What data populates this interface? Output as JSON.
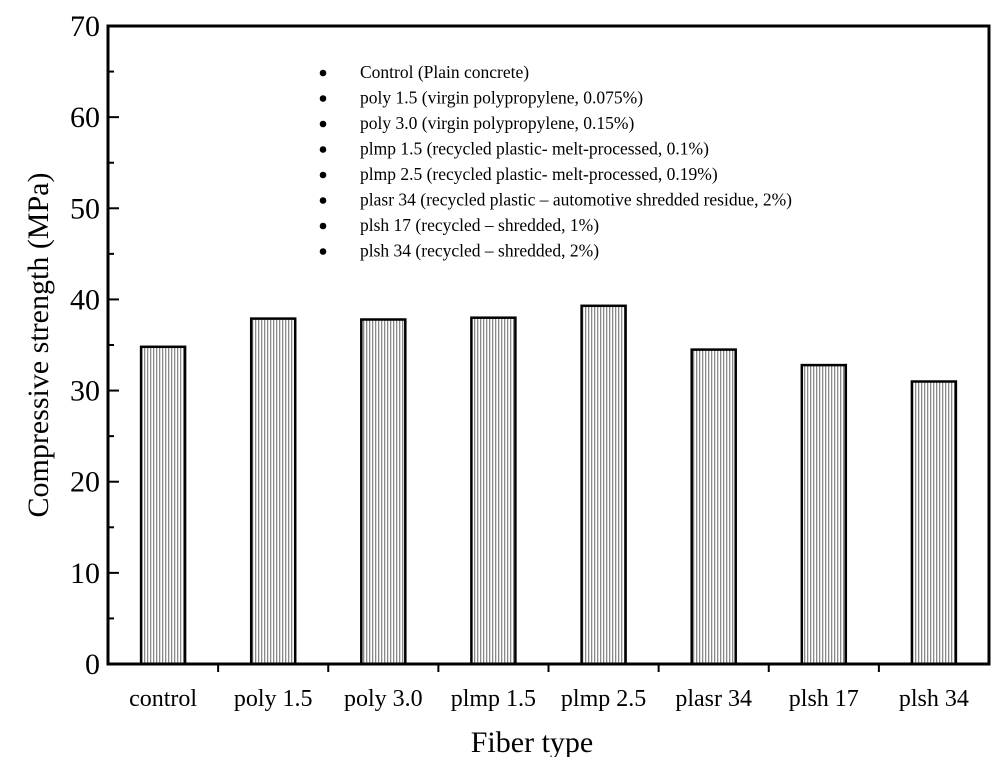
{
  "chart_data": {
    "type": "bar",
    "title": "",
    "xlabel": "Fiber type",
    "ylabel": "Compressive strength (MPa)",
    "ylim": [
      0,
      70
    ],
    "yticks": [
      0,
      10,
      20,
      30,
      40,
      50,
      60,
      70
    ],
    "categories": [
      "control",
      "poly 1.5",
      "poly 3.0",
      "plmp 1.5",
      "plmp 2.5",
      "plasr 34",
      "plsh 17",
      "plsh 34"
    ],
    "values": [
      34.8,
      37.9,
      37.8,
      38.0,
      39.3,
      34.5,
      32.8,
      31.0
    ],
    "legend": {
      "placement": "top-center",
      "entries": [
        "Control (Plain concrete)",
        "poly 1.5 (virgin polypropylene, 0.075%)",
        "poly 3.0 (virgin polypropylene, 0.15%)",
        "plmp 1.5 (recycled plastic- melt-processed, 0.1%)",
        "plmp 2.5 (recycled plastic- melt-processed, 0.19%)",
        "plasr 34 (recycled plastic – automotive shredded residue, 2%)",
        "plsh 17 (recycled – shredded, 1%)",
        "plsh 34 (recycled – shredded, 2%)"
      ]
    },
    "grid": false,
    "bar_fill": "vertical-hatch"
  }
}
